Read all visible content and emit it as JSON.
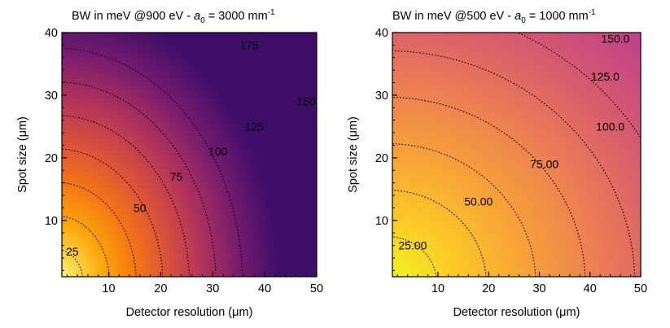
{
  "chart_data": [
    {
      "type": "heatmap",
      "title": "BW in meV @900 eV   - a0 = 3000 mm-1",
      "title_parts": {
        "main": "BW in meV @900 eV   - ",
        "a": "a",
        "sub": "0",
        "eq": " = 3000 mm",
        "sup": "-1"
      },
      "xlabel": "Detector resolution (μm)",
      "ylabel": "Spot size (μm)",
      "xlim": [
        1,
        50
      ],
      "ylim": [
        1,
        40
      ],
      "xticks": [
        10,
        20,
        30,
        40,
        50
      ],
      "yticks": [
        10,
        20,
        30,
        40
      ],
      "colormap": "inferno",
      "color_range": [
        0,
        210
      ],
      "contours": [
        {
          "level": 25,
          "label": "25",
          "label_at": [
            3,
            5
          ]
        },
        {
          "level": 50,
          "label": "50",
          "label_at": [
            16,
            12
          ]
        },
        {
          "level": 75,
          "label": "75",
          "label_at": [
            23,
            17
          ]
        },
        {
          "level": 100,
          "label": "100",
          "label_at": [
            31,
            21
          ]
        },
        {
          "level": 125,
          "label": "125",
          "label_at": [
            38,
            25
          ]
        },
        {
          "level": 150,
          "label": "150",
          "label_at": [
            48,
            29
          ]
        },
        {
          "level": 175,
          "label": "175",
          "label_at": [
            37,
            38
          ]
        }
      ],
      "contour_scale": {
        "k_detector": 4.9,
        "k_spot": 4.67
      }
    },
    {
      "type": "heatmap",
      "title": "BW in meV @500 eV  - a0 = 1000 mm-1",
      "title_parts": {
        "main": "BW in meV @500 eV  - ",
        "a": "a",
        "sub": "0",
        "eq": " = 1000 mm",
        "sup": "-1"
      },
      "xlabel": "Detector resolution (μm)",
      "ylabel": "Spot size (μm)",
      "xlim": [
        1,
        50
      ],
      "ylim": [
        1,
        40
      ],
      "xticks": [
        10,
        20,
        30,
        40,
        50
      ],
      "yticks": [
        10,
        20,
        30,
        40
      ],
      "colormap": "plasma",
      "color_range": [
        0,
        240
      ],
      "contours": [
        {
          "level": 25,
          "label": "25.00",
          "label_at": [
            5,
            6
          ]
        },
        {
          "level": 50,
          "label": "50.00",
          "label_at": [
            18,
            13
          ]
        },
        {
          "level": 75,
          "label": "75.00",
          "label_at": [
            31,
            19
          ]
        },
        {
          "level": 100,
          "label": "100.0",
          "label_at": [
            44,
            25
          ]
        },
        {
          "level": 125,
          "label": "125.0",
          "label_at": [
            43,
            33
          ]
        },
        {
          "level": 150,
          "label": "150.0",
          "label_at": [
            45,
            39
          ]
        }
      ],
      "contour_scale": {
        "k_detector": 2.56,
        "k_spot": 3.37
      }
    }
  ]
}
